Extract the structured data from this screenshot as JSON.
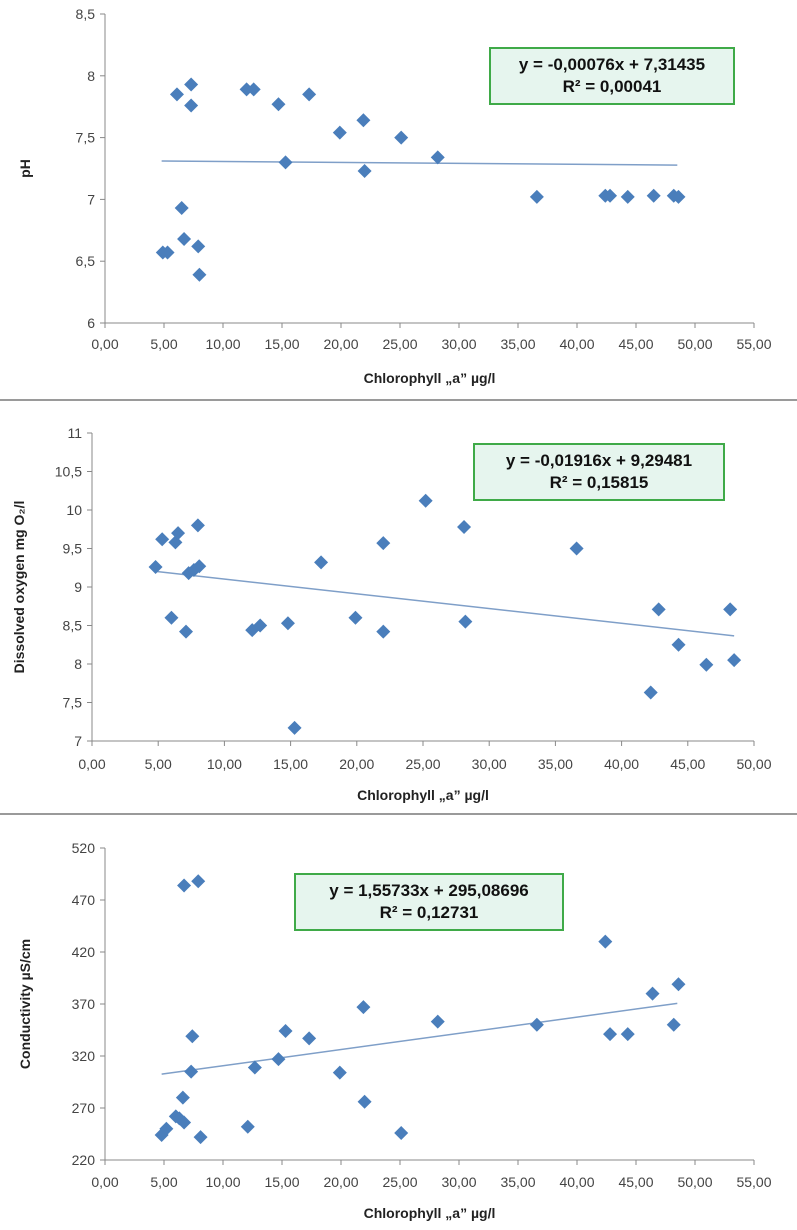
{
  "chart_data": [
    {
      "type": "scatter",
      "title": "",
      "xlabel": "Chlorophyll „a” µg/l",
      "ylabel": "pH",
      "xlim": [
        0,
        55
      ],
      "ylim": [
        6,
        8.5
      ],
      "x_ticks": [
        "0,00",
        "5,00",
        "10,00",
        "15,00",
        "20,00",
        "25,00",
        "30,00",
        "35,00",
        "40,00",
        "45,00",
        "50,00",
        "55,00"
      ],
      "y_ticks": [
        "6",
        "6,5",
        "7",
        "7,5",
        "8",
        "8,5"
      ],
      "y_tick_values": [
        6,
        6.5,
        7,
        7.5,
        8,
        8.5
      ],
      "trendline": {
        "slope": -0.00076,
        "intercept": 7.31435,
        "x_range": [
          4.8,
          48.5
        ]
      },
      "equation": "y = -0,00076x + 7,31435",
      "r_squared": "R² = 0,00041",
      "marker_color": "#4a7ebb",
      "line_color": "#7f9fc8",
      "points": [
        {
          "x": 4.9,
          "y": 6.57
        },
        {
          "x": 5.3,
          "y": 6.57
        },
        {
          "x": 6.1,
          "y": 7.85
        },
        {
          "x": 6.5,
          "y": 6.93
        },
        {
          "x": 6.7,
          "y": 6.68
        },
        {
          "x": 7.3,
          "y": 7.93
        },
        {
          "x": 7.3,
          "y": 7.76
        },
        {
          "x": 7.9,
          "y": 6.62
        },
        {
          "x": 8.0,
          "y": 6.39
        },
        {
          "x": 12.0,
          "y": 7.89
        },
        {
          "x": 12.6,
          "y": 7.89
        },
        {
          "x": 14.7,
          "y": 7.77
        },
        {
          "x": 15.3,
          "y": 7.3
        },
        {
          "x": 17.3,
          "y": 7.85
        },
        {
          "x": 19.9,
          "y": 7.54
        },
        {
          "x": 21.9,
          "y": 7.64
        },
        {
          "x": 22.0,
          "y": 7.23
        },
        {
          "x": 25.1,
          "y": 7.5
        },
        {
          "x": 28.2,
          "y": 7.34
        },
        {
          "x": 36.6,
          "y": 7.02
        },
        {
          "x": 42.4,
          "y": 7.03
        },
        {
          "x": 42.8,
          "y": 7.03
        },
        {
          "x": 44.3,
          "y": 7.02
        },
        {
          "x": 46.5,
          "y": 7.03
        },
        {
          "x": 48.2,
          "y": 7.03
        },
        {
          "x": 48.6,
          "y": 7.02
        }
      ]
    },
    {
      "type": "scatter",
      "title": "",
      "xlabel": "Chlorophyll „a” µg/l",
      "ylabel": "Dissolved oxygen mg O₂/l",
      "xlim": [
        0,
        50
      ],
      "ylim": [
        7,
        11
      ],
      "x_ticks": [
        "0,00",
        "5,00",
        "10,00",
        "15,00",
        "20,00",
        "25,00",
        "30,00",
        "35,00",
        "40,00",
        "45,00",
        "50,00"
      ],
      "y_ticks": [
        "7",
        "7,5",
        "8",
        "8,5",
        "9",
        "9,5",
        "10",
        "10,5",
        "11"
      ],
      "y_tick_values": [
        7,
        7.5,
        8,
        8.5,
        9,
        9.5,
        10,
        10.5,
        11
      ],
      "trendline": {
        "slope": -0.01916,
        "intercept": 9.29481,
        "x_range": [
          4.8,
          48.5
        ]
      },
      "equation": "y = -0,01916x + 9,29481",
      "r_squared": "R² = 0,15815",
      "marker_color": "#4a7ebb",
      "line_color": "#7f9fc8",
      "points": [
        {
          "x": 4.8,
          "y": 9.26
        },
        {
          "x": 5.3,
          "y": 9.62
        },
        {
          "x": 6.0,
          "y": 8.6
        },
        {
          "x": 6.3,
          "y": 9.58
        },
        {
          "x": 6.5,
          "y": 9.7
        },
        {
          "x": 7.1,
          "y": 8.42
        },
        {
          "x": 7.3,
          "y": 9.18
        },
        {
          "x": 7.7,
          "y": 9.22
        },
        {
          "x": 8.0,
          "y": 9.8
        },
        {
          "x": 8.1,
          "y": 9.27
        },
        {
          "x": 12.1,
          "y": 8.44
        },
        {
          "x": 12.7,
          "y": 8.5
        },
        {
          "x": 14.8,
          "y": 8.53
        },
        {
          "x": 15.3,
          "y": 7.17
        },
        {
          "x": 17.3,
          "y": 9.32
        },
        {
          "x": 19.9,
          "y": 8.6
        },
        {
          "x": 22.0,
          "y": 9.57
        },
        {
          "x": 22.0,
          "y": 8.42
        },
        {
          "x": 25.2,
          "y": 10.12
        },
        {
          "x": 28.1,
          "y": 9.78
        },
        {
          "x": 28.2,
          "y": 8.55
        },
        {
          "x": 36.6,
          "y": 9.5
        },
        {
          "x": 42.2,
          "y": 7.63
        },
        {
          "x": 42.8,
          "y": 8.71
        },
        {
          "x": 44.3,
          "y": 8.25
        },
        {
          "x": 46.4,
          "y": 7.99
        },
        {
          "x": 48.2,
          "y": 8.71
        },
        {
          "x": 48.5,
          "y": 8.05
        }
      ]
    },
    {
      "type": "scatter",
      "title": "",
      "xlabel": "Chlorophyll „a” µg/l",
      "ylabel": "Conductivity µS/cm",
      "xlim": [
        0,
        55
      ],
      "ylim": [
        220,
        520
      ],
      "x_ticks": [
        "0,00",
        "5,00",
        "10,00",
        "15,00",
        "20,00",
        "25,00",
        "30,00",
        "35,00",
        "40,00",
        "45,00",
        "50,00",
        "55,00"
      ],
      "y_ticks": [
        "220",
        "270",
        "320",
        "370",
        "420",
        "470",
        "520"
      ],
      "y_tick_values": [
        220,
        270,
        320,
        370,
        420,
        470,
        520
      ],
      "trendline": {
        "slope": 1.55733,
        "intercept": 295.08696,
        "x_range": [
          4.8,
          48.5
        ]
      },
      "equation": "y = 1,55733x + 295,08696",
      "r_squared": "R² = 0,12731",
      "marker_color": "#4a7ebb",
      "line_color": "#7f9fc8",
      "points": [
        {
          "x": 4.8,
          "y": 244
        },
        {
          "x": 5.2,
          "y": 250
        },
        {
          "x": 6.0,
          "y": 262
        },
        {
          "x": 6.3,
          "y": 260
        },
        {
          "x": 6.6,
          "y": 280
        },
        {
          "x": 6.7,
          "y": 256
        },
        {
          "x": 6.7,
          "y": 484
        },
        {
          "x": 7.3,
          "y": 305
        },
        {
          "x": 7.4,
          "y": 339
        },
        {
          "x": 7.9,
          "y": 488
        },
        {
          "x": 8.1,
          "y": 242
        },
        {
          "x": 12.1,
          "y": 252
        },
        {
          "x": 12.7,
          "y": 309
        },
        {
          "x": 14.7,
          "y": 317
        },
        {
          "x": 15.3,
          "y": 344
        },
        {
          "x": 17.3,
          "y": 337
        },
        {
          "x": 19.9,
          "y": 304
        },
        {
          "x": 21.9,
          "y": 367
        },
        {
          "x": 22.0,
          "y": 276
        },
        {
          "x": 25.1,
          "y": 246
        },
        {
          "x": 28.2,
          "y": 353
        },
        {
          "x": 36.6,
          "y": 350
        },
        {
          "x": 42.4,
          "y": 430
        },
        {
          "x": 42.8,
          "y": 341
        },
        {
          "x": 44.3,
          "y": 341
        },
        {
          "x": 46.4,
          "y": 380
        },
        {
          "x": 48.2,
          "y": 350
        },
        {
          "x": 48.6,
          "y": 389
        }
      ]
    }
  ]
}
